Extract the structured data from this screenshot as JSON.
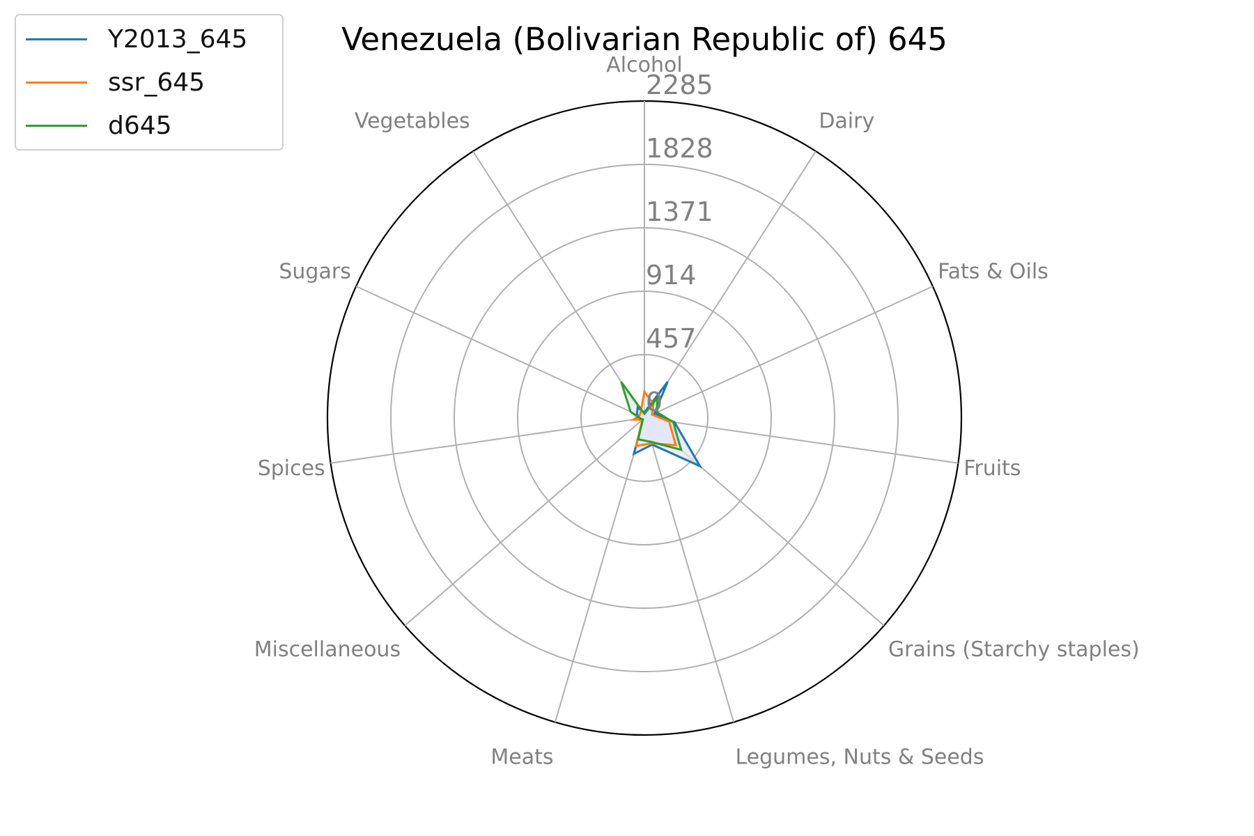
{
  "chart_data": {
    "type": "radar",
    "title": "Venezuela (Bolivarian Republic of) 645",
    "categories": [
      "Alcohol",
      "Dairy",
      "Fats & Oils",
      "Fruits",
      "Grains (Starchy staples)",
      "Legumes, Nuts & Seeds",
      "Meats",
      "Miscellaneous",
      "Spices",
      "Sugars",
      "Vegetables"
    ],
    "rlim": [
      0,
      2285
    ],
    "rticks": [
      "0",
      "457",
      "914",
      "1371",
      "1828",
      "2285"
    ],
    "rtick_values": [
      0,
      457,
      914,
      1371,
      1828,
      2285
    ],
    "grid": true,
    "legend_position": "upper-left",
    "series": [
      {
        "name": "Y2013_645",
        "color": "#1f77b4",
        "values": [
          40,
          310,
          80,
          220,
          530,
          200,
          270,
          15,
          30,
          60,
          90
        ]
      },
      {
        "name": "ssr_645",
        "color": "#ff7f0e",
        "values": [
          190,
          120,
          60,
          180,
          300,
          190,
          210,
          20,
          80,
          40,
          50
        ]
      },
      {
        "name": "d645",
        "color": "#2ca02c",
        "values": [
          30,
          170,
          100,
          210,
          350,
          180,
          160,
          15,
          30,
          110,
          310
        ]
      }
    ],
    "fill_color": "#e6e6fa"
  }
}
